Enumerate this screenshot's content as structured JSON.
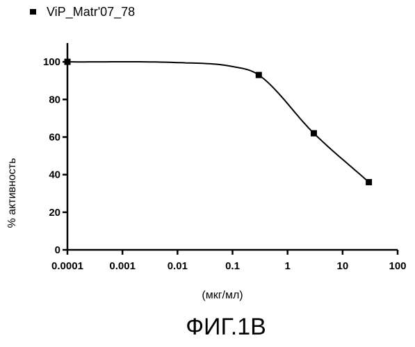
{
  "chart_data": {
    "type": "scatter",
    "legend": {
      "position": "top-left",
      "entries": [
        "ViP_Matr'07_78"
      ]
    },
    "xlabel": "(мкг/мл)",
    "ylabel": "% активность",
    "x_scale": "log",
    "xlim": [
      0.0001,
      100
    ],
    "ylim": [
      0,
      110
    ],
    "x_ticks": [
      "0.0001",
      "0.001",
      "0.01",
      "0.1",
      "1",
      "10",
      "100"
    ],
    "y_ticks": [
      "0",
      "20",
      "40",
      "60",
      "80",
      "100"
    ],
    "grid": false,
    "series": [
      {
        "name": "ViP_Matr'07_78",
        "color": "#000000",
        "marker": "square",
        "points": [
          {
            "x": 0.0001,
            "y": 100
          },
          {
            "x": 0.3,
            "y": 93
          },
          {
            "x": 3,
            "y": 62
          },
          {
            "x": 30,
            "y": 36
          }
        ]
      }
    ]
  },
  "caption": "ФИГ.1В"
}
